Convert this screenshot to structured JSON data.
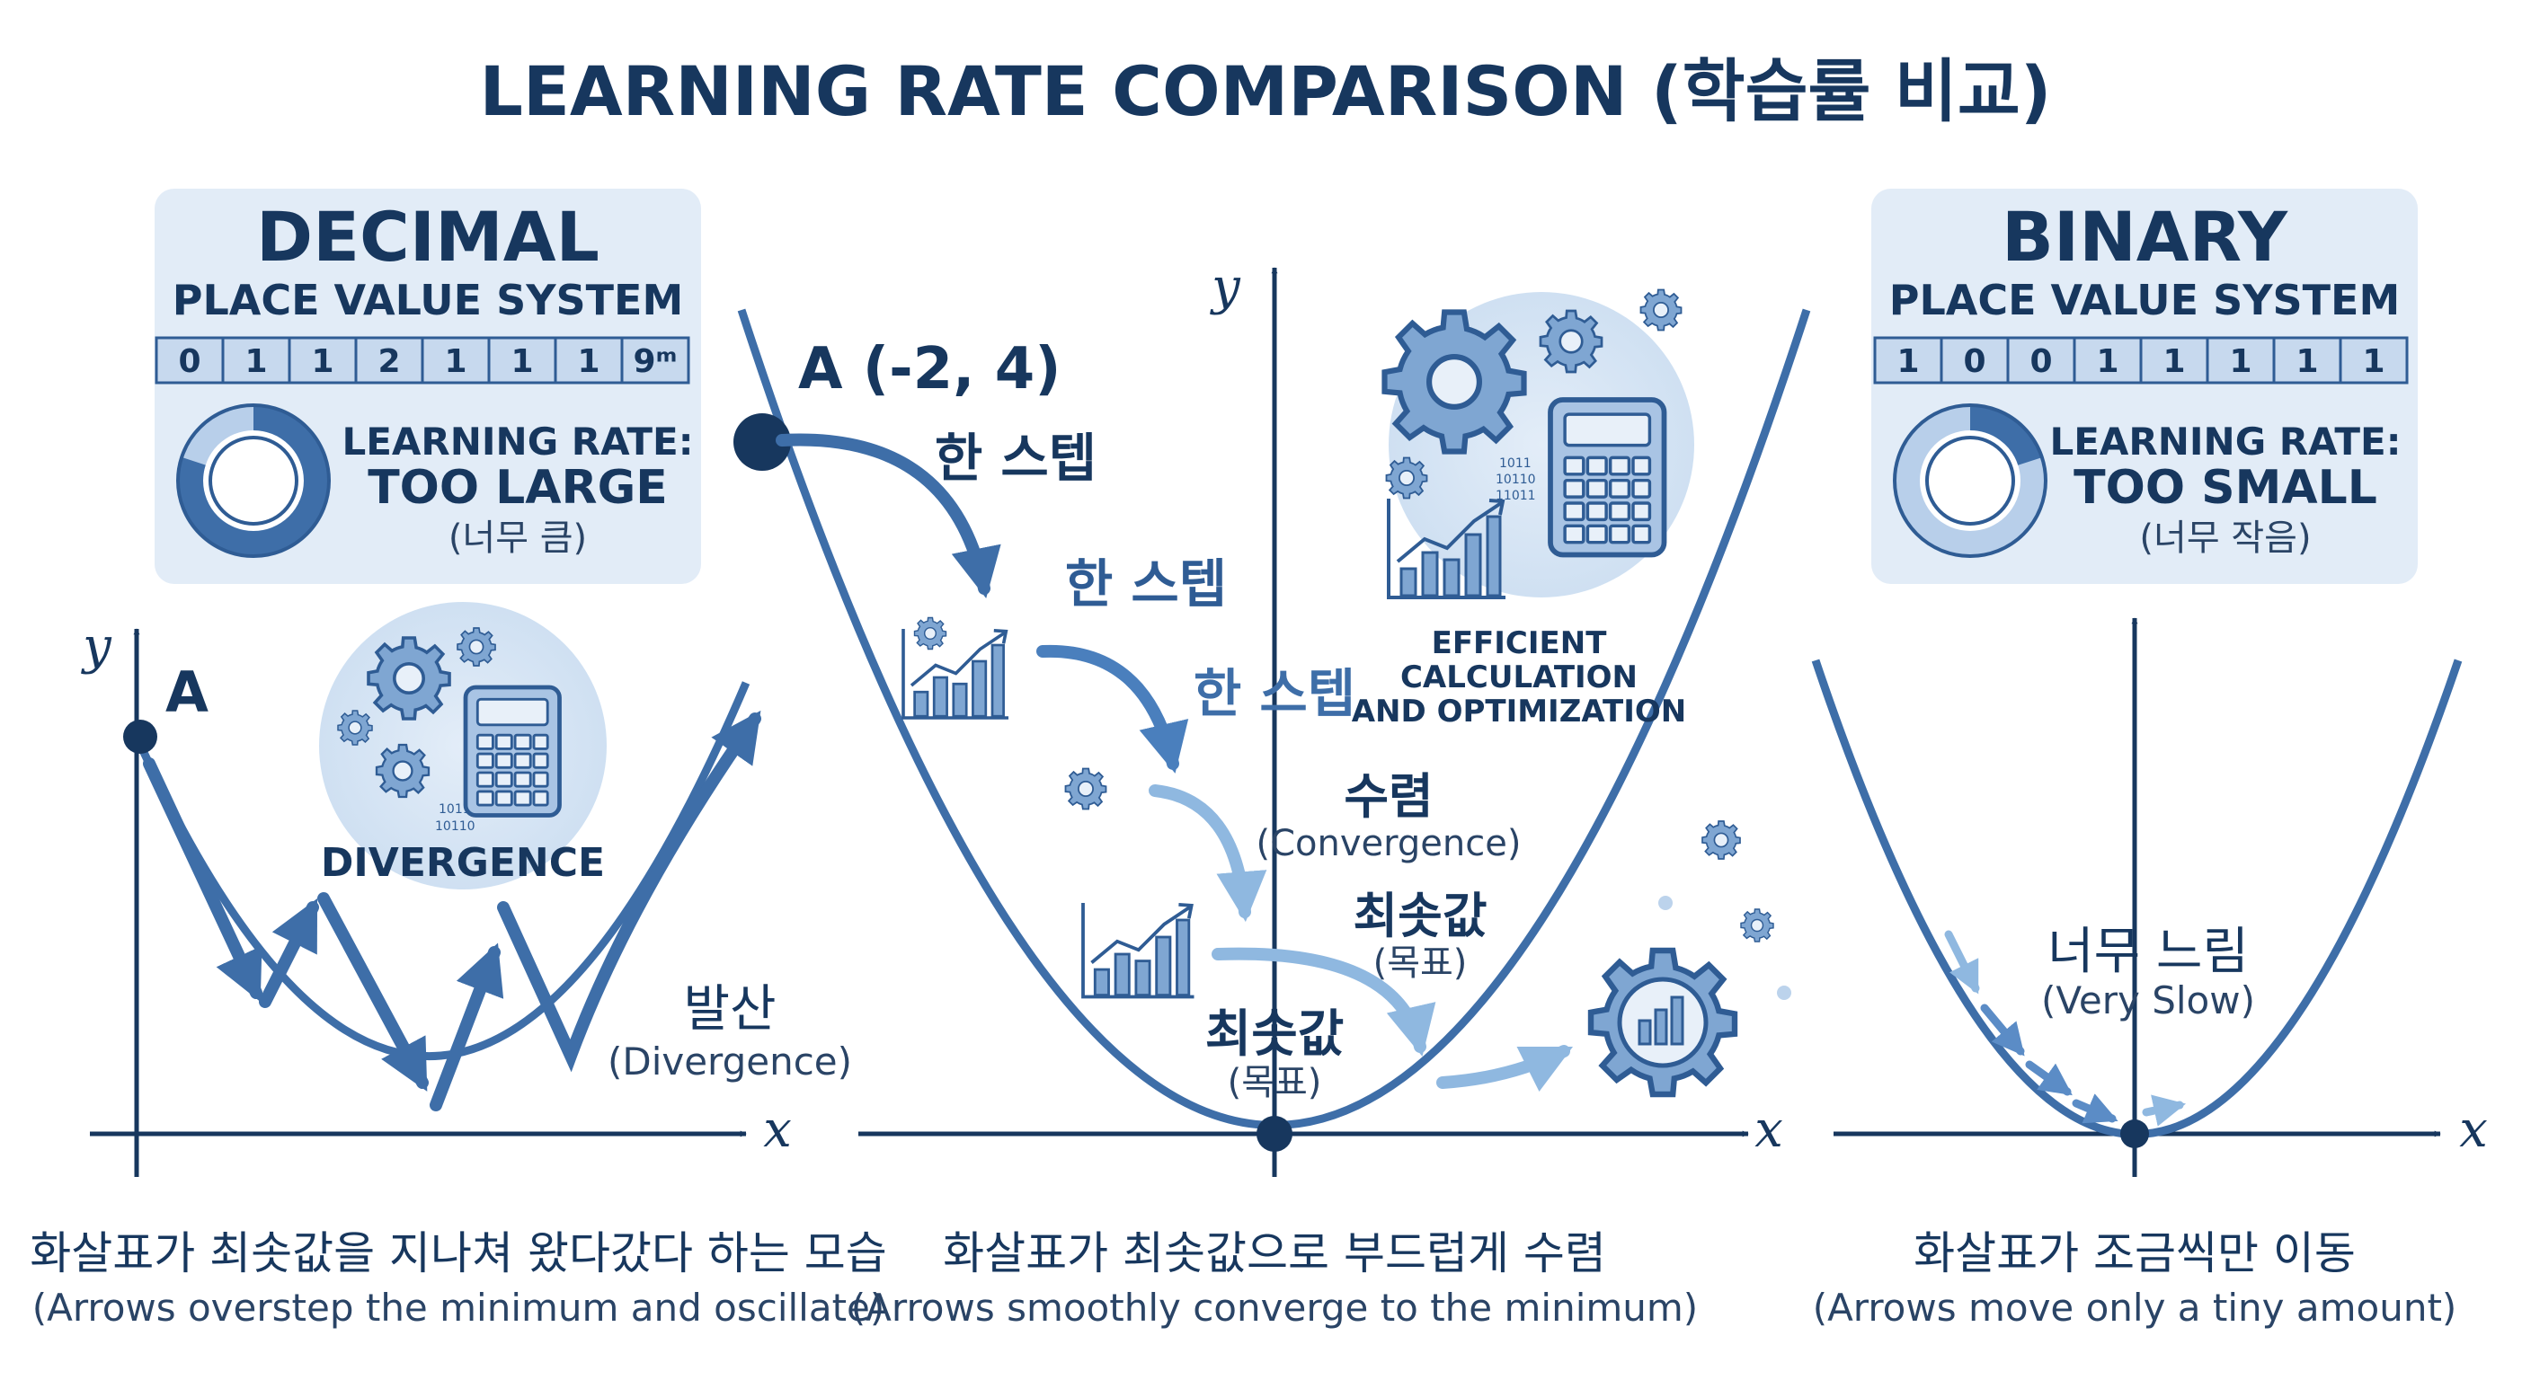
{
  "title": "LEARNING RATE COMPARISON (학습률 비교)",
  "colors": {
    "navy": "#17375e",
    "curve": "#3e6ea8",
    "arrow_mid": "#4a7fbd",
    "arrow_light": "#8fb8e0",
    "panel": "#e2ecf7"
  },
  "left": {
    "panel": {
      "heading": "DECIMAL",
      "subheading": "PLACE VALUE SYSTEM",
      "digits": [
        "0",
        "1",
        "1",
        "2",
        "1",
        "1",
        "1",
        "9ᵐ"
      ],
      "lr_label": "LEARNING RATE:",
      "lr_value": "TOO LARGE",
      "lr_korean": "(너무 큼)",
      "ring_fill": 0.8
    },
    "axis_x": "x",
    "axis_y": "y",
    "point_label": "A",
    "icon_caption": "DIVERGENCE",
    "binary_snippet": [
      "1011",
      "10110"
    ],
    "divergence_ko": "발산",
    "divergence_en": "(Divergence)",
    "caption_ko": "화살표가 최솟값을 지나쳐 왔다갔다 하는 모습",
    "caption_en": "(Arrows overstep the minimum and oscillate)"
  },
  "middle": {
    "axis_x": "x",
    "axis_y": "y",
    "start_point": "A (-2, 4)",
    "step_labels": [
      "한 스텝",
      "한 스텝",
      "한 스텝"
    ],
    "convergence_ko": "수렴",
    "convergence_en": "(Convergence)",
    "minimum_ko": "최솟값",
    "minimum_target": "(목표)",
    "bottom_min_ko": "최솟값",
    "bottom_min_target": "(목표)",
    "icon_caption_lines": [
      "EFFICIENT",
      "CALCULATION",
      "AND OPTIMIZATION"
    ],
    "binary_snippet": [
      "1011",
      "10110",
      "11011"
    ],
    "caption_ko": "화살표가 최솟값으로 부드럽게 수렴",
    "caption_en": "(Arrows smoothly converge to the minimum)"
  },
  "right": {
    "panel": {
      "heading": "BINARY",
      "subheading": "PLACE VALUE SYSTEM",
      "digits": [
        "1",
        "0",
        "0",
        "1",
        "1",
        "1",
        "1",
        "1"
      ],
      "lr_label": "LEARNING RATE:",
      "lr_value": "TOO SMALL",
      "lr_korean": "(너무 작음)",
      "ring_fill": 0.2
    },
    "axis_x": "x",
    "slow_ko": "너무 느림",
    "slow_en": "(Very Slow)",
    "caption_ko": "화살표가 조금씩만 이동",
    "caption_en": "(Arrows move only a tiny amount)"
  }
}
